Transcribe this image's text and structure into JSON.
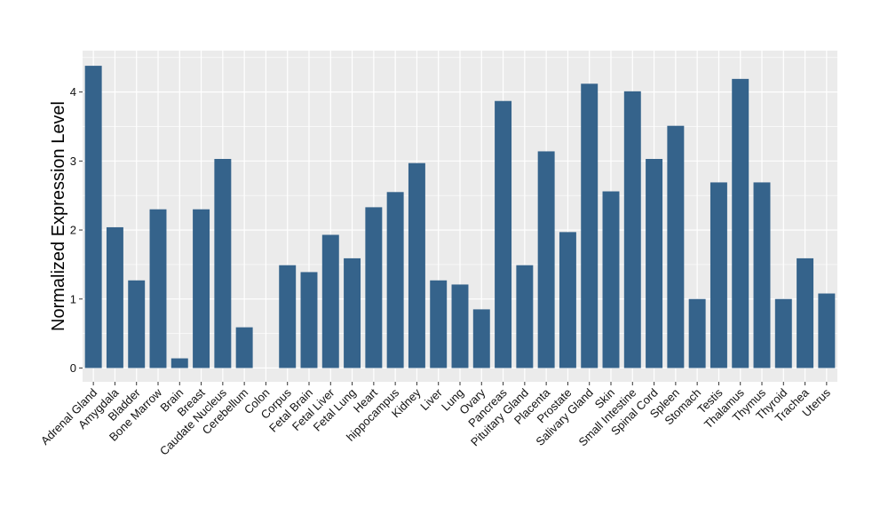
{
  "chart_data": {
    "type": "bar",
    "title": "",
    "xlabel": "",
    "ylabel": "Normalized Expression Level",
    "ylim": [
      -0.2,
      4.6
    ],
    "yticks": [
      0,
      1,
      2,
      3,
      4
    ],
    "ytick_labels": [
      "0",
      "1",
      "2",
      "3",
      "4"
    ],
    "grid": true,
    "legend": "none",
    "colors": {
      "bar": "#35638b",
      "panel": "#ebebeb",
      "grid": "#ffffff"
    },
    "categories": [
      "Adrenal Gland",
      "Amygdala",
      "Bladder",
      "Bone Marrow",
      "Brain",
      "Breast",
      "Caudate Nucleus",
      "Cerebellum",
      "Colon",
      "Corpus",
      "Fetal Brain",
      "Fetal Liver",
      "Fetal Lung",
      "Heart",
      "hippocampus",
      "Kidney",
      "Liver",
      "Lung",
      "Ovary",
      "Pancreas",
      "Pituitary Gland",
      "Placenta",
      "Prostate",
      "Salivary Gland",
      "Skin",
      "Small Intestine",
      "Spinal Cord",
      "Spleen",
      "Stomach",
      "Testis",
      "Thalamus",
      "Thymus",
      "Thyroid",
      "Trachea",
      "Uterus"
    ],
    "values": [
      4.38,
      2.04,
      1.27,
      2.3,
      0.14,
      2.3,
      3.03,
      0.59,
      0.0,
      1.49,
      1.39,
      1.93,
      1.59,
      2.33,
      2.55,
      2.97,
      1.27,
      1.21,
      0.85,
      3.87,
      1.49,
      3.14,
      1.97,
      4.12,
      2.56,
      4.01,
      3.03,
      3.51,
      1.0,
      2.69,
      4.19,
      2.69,
      1.0,
      1.59,
      1.08
    ]
  }
}
